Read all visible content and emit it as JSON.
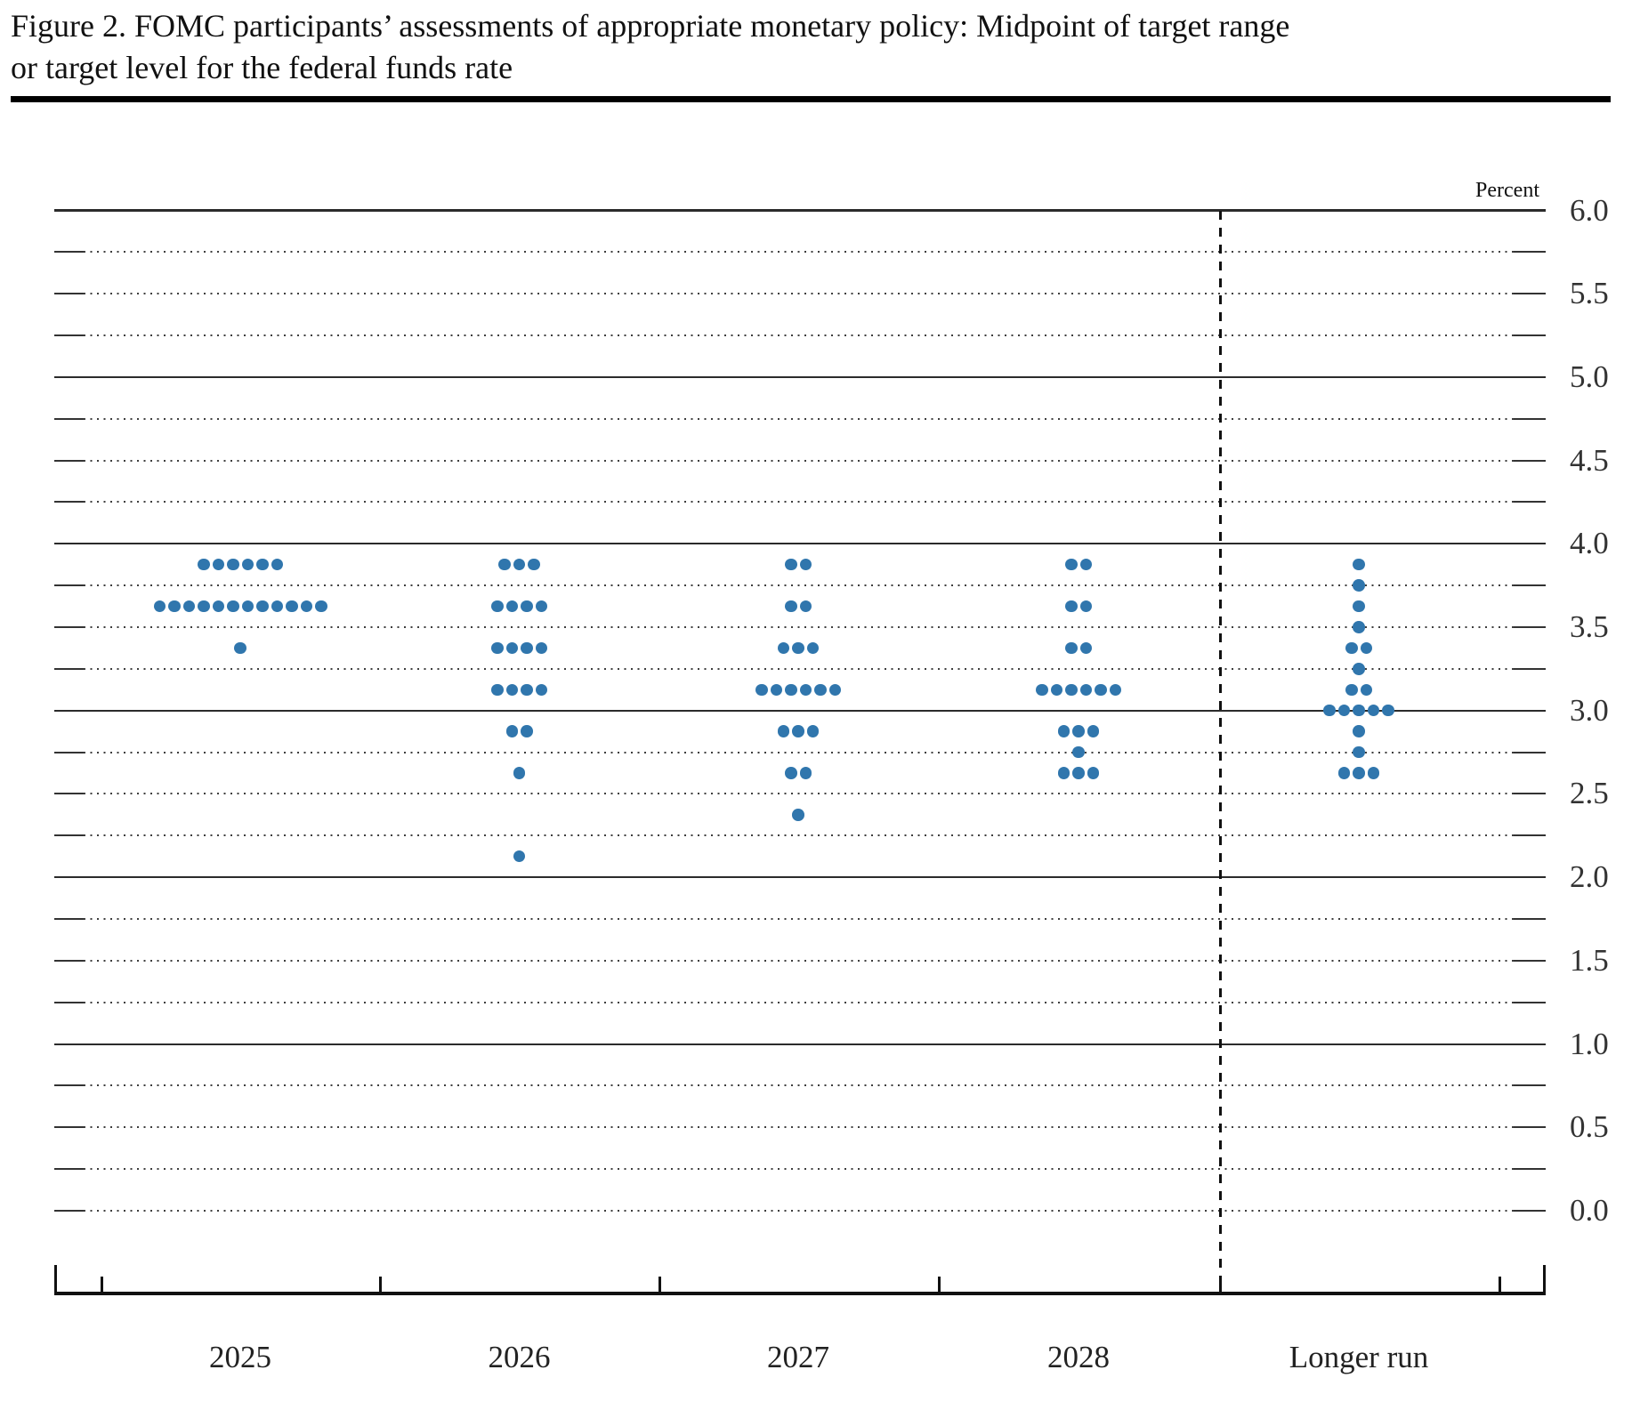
{
  "figure": {
    "title_lines": [
      "Figure 2. FOMC participants’ assessments of appropriate monetary policy: Midpoint of target range",
      "or target level for the federal funds rate"
    ]
  },
  "chart_data": {
    "type": "scatter",
    "subtype": "fomc-dot-plot",
    "title": "FOMC participants’ assessments of appropriate monetary policy: Midpoint of target range or target level for the federal funds rate",
    "ylabel": "Percent",
    "ylim": [
      0.0,
      6.0
    ],
    "y_label_step": 0.5,
    "y_grid_step": 0.25,
    "grid": "on",
    "legend": "none",
    "y_tick_labels": [
      "6.0",
      "5.5",
      "5.0",
      "4.5",
      "4.0",
      "3.5",
      "3.0",
      "2.5",
      "2.0",
      "1.5",
      "1.0",
      "0.5",
      "0.0"
    ],
    "solid_gridlines": [
      6.0,
      5.0,
      4.0,
      3.0,
      2.0,
      1.0
    ],
    "categories": [
      "2025",
      "2026",
      "2027",
      "2028",
      "Longer run"
    ],
    "participants_per_column": 19,
    "series": [
      {
        "category": "2025",
        "dots": [
          {
            "rate": 3.875,
            "count": 6
          },
          {
            "rate": 3.625,
            "count": 12
          },
          {
            "rate": 3.375,
            "count": 1
          }
        ]
      },
      {
        "category": "2026",
        "dots": [
          {
            "rate": 3.875,
            "count": 3
          },
          {
            "rate": 3.625,
            "count": 4
          },
          {
            "rate": 3.375,
            "count": 4
          },
          {
            "rate": 3.125,
            "count": 4
          },
          {
            "rate": 2.875,
            "count": 2
          },
          {
            "rate": 2.625,
            "count": 1
          },
          {
            "rate": 2.125,
            "count": 1
          }
        ]
      },
      {
        "category": "2027",
        "dots": [
          {
            "rate": 3.875,
            "count": 2
          },
          {
            "rate": 3.625,
            "count": 2
          },
          {
            "rate": 3.375,
            "count": 3
          },
          {
            "rate": 3.125,
            "count": 6
          },
          {
            "rate": 2.875,
            "count": 3
          },
          {
            "rate": 2.625,
            "count": 2
          },
          {
            "rate": 2.375,
            "count": 1
          }
        ]
      },
      {
        "category": "2028",
        "dots": [
          {
            "rate": 3.875,
            "count": 2
          },
          {
            "rate": 3.625,
            "count": 2
          },
          {
            "rate": 3.375,
            "count": 2
          },
          {
            "rate": 3.125,
            "count": 6
          },
          {
            "rate": 2.875,
            "count": 3
          },
          {
            "rate": 2.75,
            "count": 1
          },
          {
            "rate": 2.625,
            "count": 3
          }
        ]
      },
      {
        "category": "Longer run",
        "dots": [
          {
            "rate": 3.875,
            "count": 1
          },
          {
            "rate": 3.75,
            "count": 1
          },
          {
            "rate": 3.625,
            "count": 1
          },
          {
            "rate": 3.5,
            "count": 1
          },
          {
            "rate": 3.375,
            "count": 2
          },
          {
            "rate": 3.25,
            "count": 1
          },
          {
            "rate": 3.125,
            "count": 2
          },
          {
            "rate": 3.0,
            "count": 5
          },
          {
            "rate": 2.875,
            "count": 1
          },
          {
            "rate": 2.75,
            "count": 1
          },
          {
            "rate": 2.625,
            "count": 3
          }
        ]
      }
    ],
    "dot_color": "#3076ad"
  }
}
